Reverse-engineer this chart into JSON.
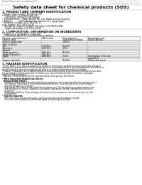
{
  "bg_color": "#ffffff",
  "header_left": "Product Name: Lithium Ion Battery Cell",
  "header_right_line1": "Substance Control: SDS-LIB-2006-10",
  "header_right_line2": "Established / Revision: Dec.7.2010",
  "title": "Safety data sheet for chemical products (SDS)",
  "section1_title": "1. PRODUCT AND COMPANY IDENTIFICATION",
  "section1_lines": [
    "• Product name: Lithium Ion Battery Cell",
    "• Product code: Cylindrical-type cell",
    "    (IXF18650U, IXF18650U, IXF18650A)",
    "• Company name:    Sanyo Electric Co., Ltd., Mobile Energy Company",
    "• Address:           2001 Kamishinden, Sumoto-City, Hyogo, Japan",
    "• Telephone number: +81-799-24-4111",
    "• Fax number: +81-799-26-4129",
    "• Emergency telephone number (Weekday) +81-799-26-3062",
    "    (Night and holiday) +81-799-26-4129"
  ],
  "section2_title": "2. COMPOSITION / INFORMATION ON INGREDIENTS",
  "section2_sub1": "• Substance or preparation: Preparation",
  "section2_sub2": "  • Information about the chemical nature of product",
  "table_col_headers1": [
    "Common chemical name /",
    "CAS number",
    "Concentration /",
    "Classification and"
  ],
  "table_col_headers2": [
    "Several name",
    "",
    "Concentration range",
    "hazard labeling"
  ],
  "table_rows": [
    [
      "Lithium cobalt oxide",
      "-",
      "30-60%",
      ""
    ],
    [
      "(LiMn-Co-Ni)O2)",
      "",
      "",
      ""
    ],
    [
      "Iron",
      "7439-89-6",
      "15-25%",
      "-"
    ],
    [
      "Aluminum",
      "7429-90-5",
      "2-6%",
      "-"
    ],
    [
      "Graphite",
      "",
      "",
      ""
    ],
    [
      "(Flake graphite)",
      "7782-42-5",
      "10-20%",
      "-"
    ],
    [
      "(Artificial graphite)",
      "7782-44-2",
      "",
      ""
    ],
    [
      "Copper",
      "7440-50-8",
      "5-15%",
      "Sensitization of the skin"
    ],
    [
      "",
      "",
      "",
      "group No.2"
    ],
    [
      "Organic electrolyte",
      "-",
      "10-20%",
      "Inflammable liquid"
    ]
  ],
  "section3_title": "3. HAZARDS IDENTIFICATION",
  "section3_lines": [
    "  For the battery cell, chemical materials are stored in a hermetically-sealed metal case, designed to withstand",
    "temperatures generated by electrode-semiconductor during normal use. As a result, during normal use, there is no",
    "physical danger of ignition or explosion and there is no danger of hazardous materials leakage.",
    "  However, if exposed to a fire, added mechanical shocks, decomposed, anion-electrolysis solution moves, when",
    "the gas leakage cannot be operated. The battery cell case will be breached at fire-extreme, hazardous",
    "materials may be released.",
    "  Moreover, if heated strongly by the surrounding fire, some gas may be emitted."
  ],
  "section3_effects_title": "• Most important hazard and effects:",
  "section3_human": "Human health effects:",
  "section3_inhalation": "  Inhalation: The release of the electrolyte has an anaesthesia action and stimulates the respiratory tract.",
  "section3_skin1": "  Skin contact: The release of the electrolyte stimulates a skin. The electrolyte skin contact causes a",
  "section3_skin2": "  sore and stimulation on the skin.",
  "section3_eye1": "  Eye contact: The release of the electrolyte stimulates eyes. The electrolyte eye contact causes a sore",
  "section3_eye2": "  and stimulation on the eye. Especially, a substance that causes a strong inflammation of the eye is",
  "section3_eye3": "  contained.",
  "section3_env1": "  Environmental effects: Since a battery cell remains in the environment, do not throw out it into the",
  "section3_env2": "  environment.",
  "section3_specific_title": "• Specific hazards:",
  "section3_specific1": "  If the electrolyte contacts with water, it will generate detrimental hydrogen fluoride.",
  "section3_specific2": "  Since the used electrolyte is inflammable liquid, do not bring close to fire."
}
